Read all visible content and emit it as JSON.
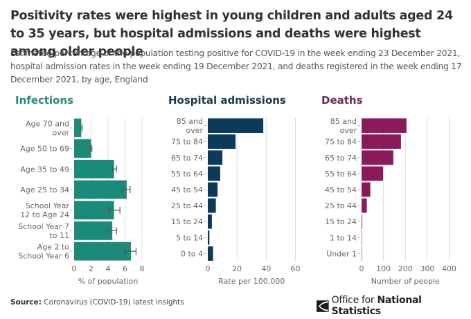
{
  "header": {
    "title": "Positivity rates were highest in young children and adults aged 24 to 35 years, but hospital admissions and deaths were highest among older people",
    "subtitle": "Estimated percentage of the population testing positive for COVID-19 in the week ending 23 December 2021, hospital admission rates in the week ending 19 December 2021, and deaths registered in the week ending 17 December 2021, by age, England"
  },
  "footer": {
    "source_label": "Source:",
    "source_text": "Coronavirus (COVID-19) latest insights",
    "logo_icon": "ons-logo-icon",
    "logo_text_light": "Office for ",
    "logo_text_bold": "National Statistics"
  },
  "chart_data": [
    {
      "type": "bar",
      "orientation": "horizontal",
      "title": "Infections",
      "color": "#1b8a78",
      "title_color": "#2a8a78",
      "categories": [
        [
          "Age 70 and",
          "over"
        ],
        [
          "Age 50 to 69"
        ],
        [
          "Age 35 to 49"
        ],
        [
          "Age 25 to 34"
        ],
        [
          "School Year",
          "12 to Age 24"
        ],
        [
          "School Year 7",
          "to 11"
        ],
        [
          "Age 2 to",
          "School Year 6"
        ]
      ],
      "values": [
        0.85,
        2.0,
        4.7,
        6.2,
        4.7,
        4.5,
        6.7
      ],
      "error_low": [
        0.75,
        1.9,
        4.5,
        5.7,
        4.1,
        3.9,
        6.0
      ],
      "error_high": [
        0.95,
        2.1,
        5.0,
        6.6,
        5.4,
        5.0,
        7.3
      ],
      "xlabel": "% of population",
      "xticks": [
        0,
        2,
        4,
        6,
        8
      ],
      "xlim": [
        0,
        8
      ],
      "grid": true
    },
    {
      "type": "bar",
      "orientation": "horizontal",
      "title": "Hospital admissions",
      "color": "#0b3a5a",
      "title_color": "#163a55",
      "categories": [
        [
          "85 and",
          "over"
        ],
        [
          "75 to 84"
        ],
        [
          "65 to 74"
        ],
        [
          "55 to 64"
        ],
        [
          "45 to 54"
        ],
        [
          "25 to 44"
        ],
        [
          "15 to 24"
        ],
        [
          "5 to 14"
        ],
        [
          "0 to 4"
        ]
      ],
      "values": [
        38,
        19,
        10,
        8.5,
        6.7,
        5.5,
        2.8,
        1.1,
        3.6
      ],
      "xlabel": "Rate per 100,000",
      "xticks": [
        0,
        20,
        40,
        60
      ],
      "xlim": [
        0,
        60
      ],
      "grid": true
    },
    {
      "type": "bar",
      "orientation": "horizontal",
      "title": "Deaths",
      "color": "#8b1a5c",
      "title_color": "#6e2a5c",
      "categories": [
        [
          "85 and",
          "over"
        ],
        [
          "75 to 84"
        ],
        [
          "65 to 74"
        ],
        [
          "55 to 64"
        ],
        [
          "45 to 54"
        ],
        [
          "25 to 44"
        ],
        [
          "15 to 24"
        ],
        [
          "1 to 14"
        ],
        [
          "Under 1"
        ]
      ],
      "values": [
        205,
        180,
        145,
        98,
        40,
        24,
        3,
        0,
        0
      ],
      "xlabel": "Number of people",
      "xticks": [
        0,
        100,
        200,
        300,
        400
      ],
      "xlim": [
        0,
        400
      ],
      "grid": true
    }
  ]
}
